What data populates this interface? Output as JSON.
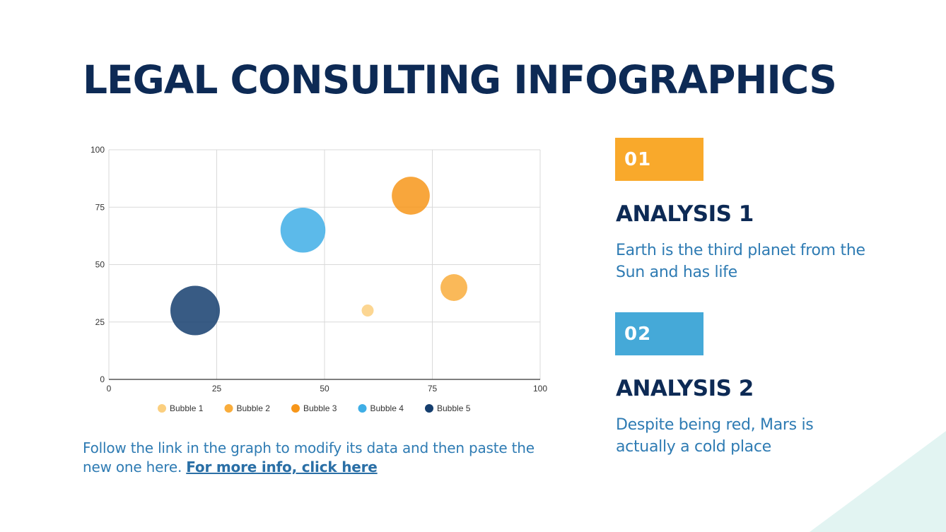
{
  "title": "LEGAL CONSULTING INFOGRAPHICS",
  "note": {
    "text": "Follow the link in the graph to modify its data and then paste the new one here. ",
    "link_text": "For more info, click here"
  },
  "analyses": [
    {
      "number": "01",
      "title": "ANALYSIS 1",
      "text": "Earth is the third planet from the Sun and has life",
      "color": "#f9a92b"
    },
    {
      "number": "02",
      "title": "ANALYSIS 2",
      "text": "Despite being red, Mars is actually a cold place",
      "color": "#45a9d8"
    }
  ],
  "colors": {
    "title": "#0d2a55",
    "body_text": "#2e7bb3",
    "corner_accent": "#e2f4f2"
  },
  "chart_data": {
    "type": "scatter",
    "subtype": "bubble",
    "xlim": [
      0,
      100
    ],
    "ylim": [
      0,
      100
    ],
    "xticks": [
      0,
      25,
      50,
      75,
      100
    ],
    "yticks": [
      0,
      25,
      50,
      75,
      100
    ],
    "grid": true,
    "legend": "bottom",
    "series": [
      {
        "name": "Bubble 1",
        "x": 60,
        "y": 30,
        "size": 1,
        "color": "#fbcf7f"
      },
      {
        "name": "Bubble 2",
        "x": 80,
        "y": 40,
        "size": 5,
        "color": "#f9ad3c"
      },
      {
        "name": "Bubble 3",
        "x": 70,
        "y": 80,
        "size": 10,
        "color": "#f7961a"
      },
      {
        "name": "Bubble 4",
        "x": 45,
        "y": 65,
        "size": 14,
        "color": "#3faee6"
      },
      {
        "name": "Bubble 5",
        "x": 20,
        "y": 30,
        "size": 17,
        "color": "#153e6e"
      }
    ]
  }
}
